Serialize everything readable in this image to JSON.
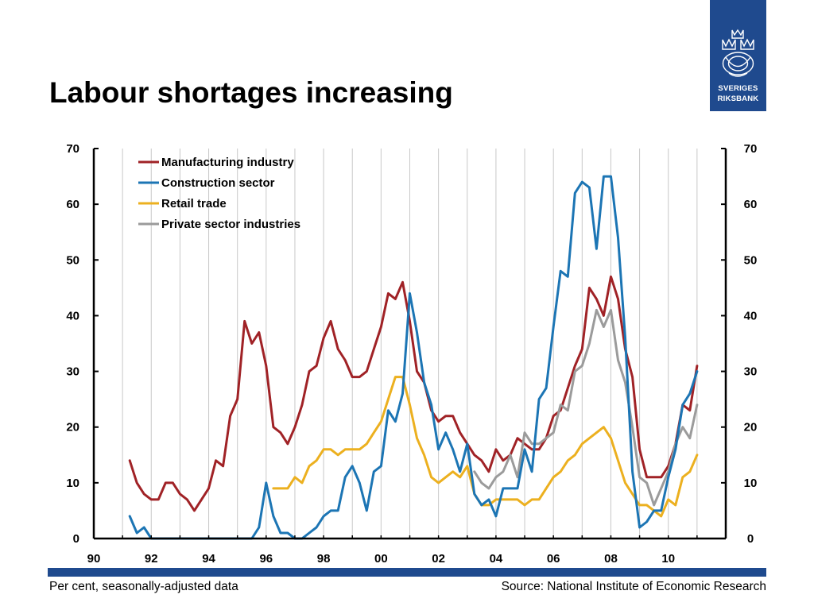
{
  "slide": {
    "title": "Labour shortages increasing",
    "footnote_left": "Per cent, seasonally-adjusted data",
    "footnote_right": "Source: National Institute of Economic Research"
  },
  "logo": {
    "line1": "SVERIGES",
    "line2": "RIKSBANK",
    "background": "#1f4a8e"
  },
  "chart_data": {
    "type": "line",
    "title": "",
    "xlabel": "",
    "ylabel": "",
    "xlim": [
      1990,
      2012
    ],
    "ylim": [
      0,
      70
    ],
    "x_ticks": [
      "90",
      "92",
      "94",
      "96",
      "98",
      "00",
      "02",
      "04",
      "06",
      "08",
      "10"
    ],
    "y_ticks": [
      "0",
      "10",
      "20",
      "30",
      "40",
      "50",
      "60",
      "70"
    ],
    "dual_y_axis": true,
    "grid": "vertical",
    "legend_position": "top-left",
    "series": [
      {
        "name": "Manufacturing industry",
        "color": "#a02226",
        "points": [
          [
            1991.25,
            14
          ],
          [
            1991.5,
            10
          ],
          [
            1991.75,
            8
          ],
          [
            1992,
            7
          ],
          [
            1992.25,
            7
          ],
          [
            1992.5,
            10
          ],
          [
            1992.75,
            10
          ],
          [
            1993,
            8
          ],
          [
            1993.25,
            7
          ],
          [
            1993.5,
            5
          ],
          [
            1993.75,
            7
          ],
          [
            1994,
            9
          ],
          [
            1994.25,
            14
          ],
          [
            1994.5,
            13
          ],
          [
            1994.75,
            22
          ],
          [
            1995,
            25
          ],
          [
            1995.25,
            39
          ],
          [
            1995.5,
            35
          ],
          [
            1995.75,
            37
          ],
          [
            1996,
            31
          ],
          [
            1996.25,
            20
          ],
          [
            1996.5,
            19
          ],
          [
            1996.75,
            17
          ],
          [
            1997,
            20
          ],
          [
            1997.25,
            24
          ],
          [
            1997.5,
            30
          ],
          [
            1997.75,
            31
          ],
          [
            1998,
            36
          ],
          [
            1998.25,
            39
          ],
          [
            1998.5,
            34
          ],
          [
            1998.75,
            32
          ],
          [
            1999,
            29
          ],
          [
            1999.25,
            29
          ],
          [
            1999.5,
            30
          ],
          [
            1999.75,
            34
          ],
          [
            2000,
            38
          ],
          [
            2000.25,
            44
          ],
          [
            2000.5,
            43
          ],
          [
            2000.75,
            46
          ],
          [
            2001,
            39
          ],
          [
            2001.25,
            30
          ],
          [
            2001.5,
            28
          ],
          [
            2001.75,
            23
          ],
          [
            2002,
            21
          ],
          [
            2002.25,
            22
          ],
          [
            2002.5,
            22
          ],
          [
            2002.75,
            19
          ],
          [
            2003,
            17
          ],
          [
            2003.25,
            15
          ],
          [
            2003.5,
            14
          ],
          [
            2003.75,
            12
          ],
          [
            2004,
            16
          ],
          [
            2004.25,
            14
          ],
          [
            2004.5,
            15
          ],
          [
            2004.75,
            18
          ],
          [
            2005,
            17
          ],
          [
            2005.25,
            16
          ],
          [
            2005.5,
            16
          ],
          [
            2005.75,
            18
          ],
          [
            2006,
            22
          ],
          [
            2006.25,
            23
          ],
          [
            2006.5,
            27
          ],
          [
            2006.75,
            31
          ],
          [
            2007,
            34
          ],
          [
            2007.25,
            45
          ],
          [
            2007.5,
            43
          ],
          [
            2007.75,
            40
          ],
          [
            2008,
            47
          ],
          [
            2008.25,
            43
          ],
          [
            2008.5,
            34
          ],
          [
            2008.75,
            29
          ],
          [
            2009,
            16
          ],
          [
            2009.25,
            11
          ],
          [
            2009.5,
            11
          ],
          [
            2009.75,
            11
          ],
          [
            2010,
            13
          ],
          [
            2010.25,
            17
          ],
          [
            2010.5,
            24
          ],
          [
            2010.75,
            23
          ],
          [
            2011,
            31
          ]
        ]
      },
      {
        "name": "Construction sector",
        "color": "#1c75b4",
        "points": [
          [
            1991.25,
            4
          ],
          [
            1991.5,
            1
          ],
          [
            1991.75,
            2
          ],
          [
            1992,
            0
          ],
          [
            1992.5,
            0
          ],
          [
            1993,
            0
          ],
          [
            1993.5,
            0
          ],
          [
            1994,
            0
          ],
          [
            1994.5,
            0
          ],
          [
            1995,
            0
          ],
          [
            1995.5,
            0
          ],
          [
            1995.75,
            2
          ],
          [
            1996,
            10
          ],
          [
            1996.25,
            4
          ],
          [
            1996.5,
            1
          ],
          [
            1996.75,
            1
          ],
          [
            1997,
            0
          ],
          [
            1997.25,
            0
          ],
          [
            1997.5,
            1
          ],
          [
            1997.75,
            2
          ],
          [
            1998,
            4
          ],
          [
            1998.25,
            5
          ],
          [
            1998.5,
            5
          ],
          [
            1998.75,
            11
          ],
          [
            1999,
            13
          ],
          [
            1999.25,
            10
          ],
          [
            1999.5,
            5
          ],
          [
            1999.75,
            12
          ],
          [
            2000,
            13
          ],
          [
            2000.25,
            23
          ],
          [
            2000.5,
            21
          ],
          [
            2000.75,
            26
          ],
          [
            2001,
            44
          ],
          [
            2001.25,
            37
          ],
          [
            2001.5,
            28
          ],
          [
            2001.75,
            24
          ],
          [
            2002,
            16
          ],
          [
            2002.25,
            19
          ],
          [
            2002.5,
            16
          ],
          [
            2002.75,
            12
          ],
          [
            2003,
            17
          ],
          [
            2003.25,
            8
          ],
          [
            2003.5,
            6
          ],
          [
            2003.75,
            7
          ],
          [
            2004,
            4
          ],
          [
            2004.25,
            9
          ],
          [
            2004.5,
            9
          ],
          [
            2004.75,
            9
          ],
          [
            2005,
            16
          ],
          [
            2005.25,
            12
          ],
          [
            2005.5,
            25
          ],
          [
            2005.75,
            27
          ],
          [
            2006,
            38
          ],
          [
            2006.25,
            48
          ],
          [
            2006.5,
            47
          ],
          [
            2006.75,
            62
          ],
          [
            2007,
            64
          ],
          [
            2007.25,
            63
          ],
          [
            2007.5,
            52
          ],
          [
            2007.75,
            65
          ],
          [
            2008,
            65
          ],
          [
            2008.25,
            54
          ],
          [
            2008.5,
            36
          ],
          [
            2008.75,
            12
          ],
          [
            2009,
            2
          ],
          [
            2009.25,
            3
          ],
          [
            2009.5,
            5
          ],
          [
            2009.75,
            5
          ],
          [
            2010,
            11
          ],
          [
            2010.25,
            16
          ],
          [
            2010.5,
            24
          ],
          [
            2010.75,
            26
          ],
          [
            2011,
            30
          ]
        ]
      },
      {
        "name": "Retail trade",
        "color": "#ecb01f",
        "points": [
          [
            1996.25,
            9
          ],
          [
            1996.5,
            9
          ],
          [
            1996.75,
            9
          ],
          [
            1997,
            11
          ],
          [
            1997.25,
            10
          ],
          [
            1997.5,
            13
          ],
          [
            1997.75,
            14
          ],
          [
            1998,
            16
          ],
          [
            1998.25,
            16
          ],
          [
            1998.5,
            15
          ],
          [
            1998.75,
            16
          ],
          [
            1999,
            16
          ],
          [
            1999.25,
            16
          ],
          [
            1999.5,
            17
          ],
          [
            1999.75,
            19
          ],
          [
            2000,
            21
          ],
          [
            2000.25,
            25
          ],
          [
            2000.5,
            29
          ],
          [
            2000.75,
            29
          ],
          [
            2001,
            24
          ],
          [
            2001.25,
            18
          ],
          [
            2001.5,
            15
          ],
          [
            2001.75,
            11
          ],
          [
            2002,
            10
          ],
          [
            2002.25,
            11
          ],
          [
            2002.5,
            12
          ],
          [
            2002.75,
            11
          ],
          [
            2003,
            13
          ],
          [
            2003.25,
            8
          ],
          [
            2003.5,
            6
          ],
          [
            2003.75,
            6
          ],
          [
            2004,
            7
          ],
          [
            2004.25,
            7
          ],
          [
            2004.5,
            7
          ],
          [
            2004.75,
            7
          ],
          [
            2005,
            6
          ],
          [
            2005.25,
            7
          ],
          [
            2005.5,
            7
          ],
          [
            2005.75,
            9
          ],
          [
            2006,
            11
          ],
          [
            2006.25,
            12
          ],
          [
            2006.5,
            14
          ],
          [
            2006.75,
            15
          ],
          [
            2007,
            17
          ],
          [
            2007.25,
            18
          ],
          [
            2007.5,
            19
          ],
          [
            2007.75,
            20
          ],
          [
            2008,
            18
          ],
          [
            2008.25,
            14
          ],
          [
            2008.5,
            10
          ],
          [
            2008.75,
            8
          ],
          [
            2009,
            6
          ],
          [
            2009.25,
            6
          ],
          [
            2009.5,
            5
          ],
          [
            2009.75,
            4
          ],
          [
            2010,
            7
          ],
          [
            2010.25,
            6
          ],
          [
            2010.5,
            11
          ],
          [
            2010.75,
            12
          ],
          [
            2011,
            15
          ]
        ]
      },
      {
        "name": "Private sector industries",
        "color": "#9b9b9b",
        "points": [
          [
            2003.25,
            12
          ],
          [
            2003.5,
            10
          ],
          [
            2003.75,
            9
          ],
          [
            2004,
            11
          ],
          [
            2004.25,
            12
          ],
          [
            2004.5,
            15
          ],
          [
            2004.75,
            11
          ],
          [
            2005,
            19
          ],
          [
            2005.25,
            17
          ],
          [
            2005.5,
            17
          ],
          [
            2005.75,
            18
          ],
          [
            2006,
            19
          ],
          [
            2006.25,
            24
          ],
          [
            2006.5,
            23
          ],
          [
            2006.75,
            30
          ],
          [
            2007,
            31
          ],
          [
            2007.25,
            35
          ],
          [
            2007.5,
            41
          ],
          [
            2007.75,
            38
          ],
          [
            2008,
            41
          ],
          [
            2008.25,
            32
          ],
          [
            2008.5,
            28
          ],
          [
            2008.75,
            20
          ],
          [
            2009,
            11
          ],
          [
            2009.25,
            10
          ],
          [
            2009.5,
            6
          ],
          [
            2009.75,
            9
          ],
          [
            2010,
            12
          ],
          [
            2010.25,
            17
          ],
          [
            2010.5,
            20
          ],
          [
            2010.75,
            18
          ],
          [
            2011,
            24
          ]
        ]
      }
    ]
  }
}
